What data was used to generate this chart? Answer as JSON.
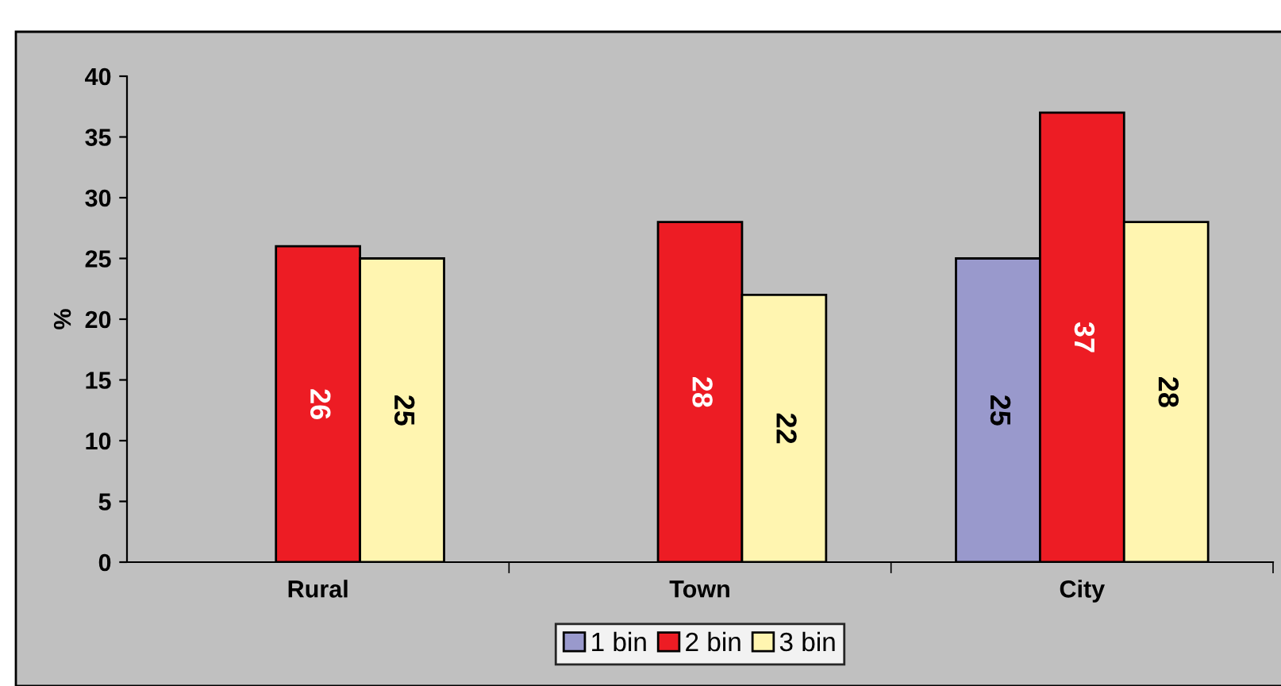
{
  "chart_data": {
    "type": "bar",
    "ylabel": "%",
    "categories": [
      "Rural",
      "Town",
      "City"
    ],
    "series": [
      {
        "name": "1 bin",
        "color": "#9999cc",
        "values": [
          null,
          null,
          25
        ]
      },
      {
        "name": "2 bin",
        "color": "#ed1c24",
        "values": [
          26,
          28,
          37
        ]
      },
      {
        "name": "3 bin",
        "color": "#fff5b0",
        "values": [
          25,
          22,
          28
        ]
      }
    ],
    "ylim": [
      0,
      40
    ],
    "yticks": [
      0,
      5,
      10,
      15,
      20,
      25,
      30,
      35,
      40
    ],
    "grid": false,
    "legend": "bottom",
    "data_labels": true
  }
}
